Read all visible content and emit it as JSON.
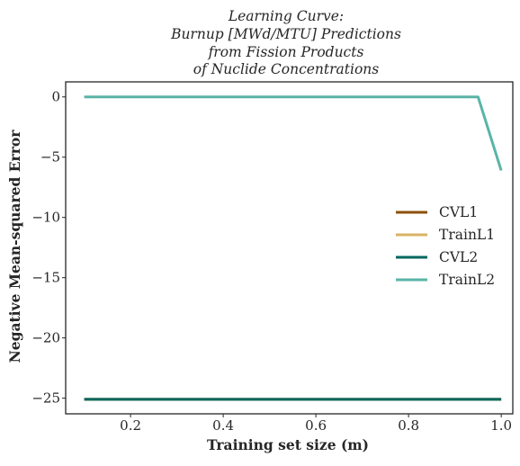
{
  "chart_data": {
    "type": "line",
    "title_lines": [
      "Learning Curve:",
      "Burnup [MWd/MTU] Predictions",
      "from Fission Products",
      "of Nuclide Concentrations"
    ],
    "xlabel": "Training set size (m)",
    "ylabel": "Negative Mean-squared Error",
    "xlim": [
      0.06,
      1.025
    ],
    "ylim": [
      -26.3,
      1.25
    ],
    "xticks": [
      0.2,
      0.4,
      0.6,
      0.8,
      1.0
    ],
    "xtick_labels": [
      "0.2",
      "0.4",
      "0.6",
      "0.8",
      "1.0"
    ],
    "yticks": [
      0,
      -5,
      -10,
      -15,
      -20,
      -25
    ],
    "ytick_labels": [
      "0",
      "−5",
      "−10",
      "−15",
      "−20",
      "−25"
    ],
    "grid": false,
    "legend_position": "center-right",
    "series": [
      {
        "name": "CVL1",
        "color": "#8c510a",
        "x": [
          0.1,
          1.0
        ],
        "y": [
          -25.1,
          -25.1
        ]
      },
      {
        "name": "TrainL1",
        "color": "#d8b365",
        "x": [
          0.1,
          1.0
        ],
        "y": [
          -25.1,
          -25.1
        ]
      },
      {
        "name": "CVL2",
        "color": "#01665e",
        "x": [
          0.1,
          1.0
        ],
        "y": [
          -25.1,
          -25.1
        ]
      },
      {
        "name": "TrainL2",
        "color": "#5ab4a7",
        "x": [
          0.1,
          0.95,
          1.0
        ],
        "y": [
          0.0,
          0.0,
          -6.1
        ]
      }
    ]
  }
}
